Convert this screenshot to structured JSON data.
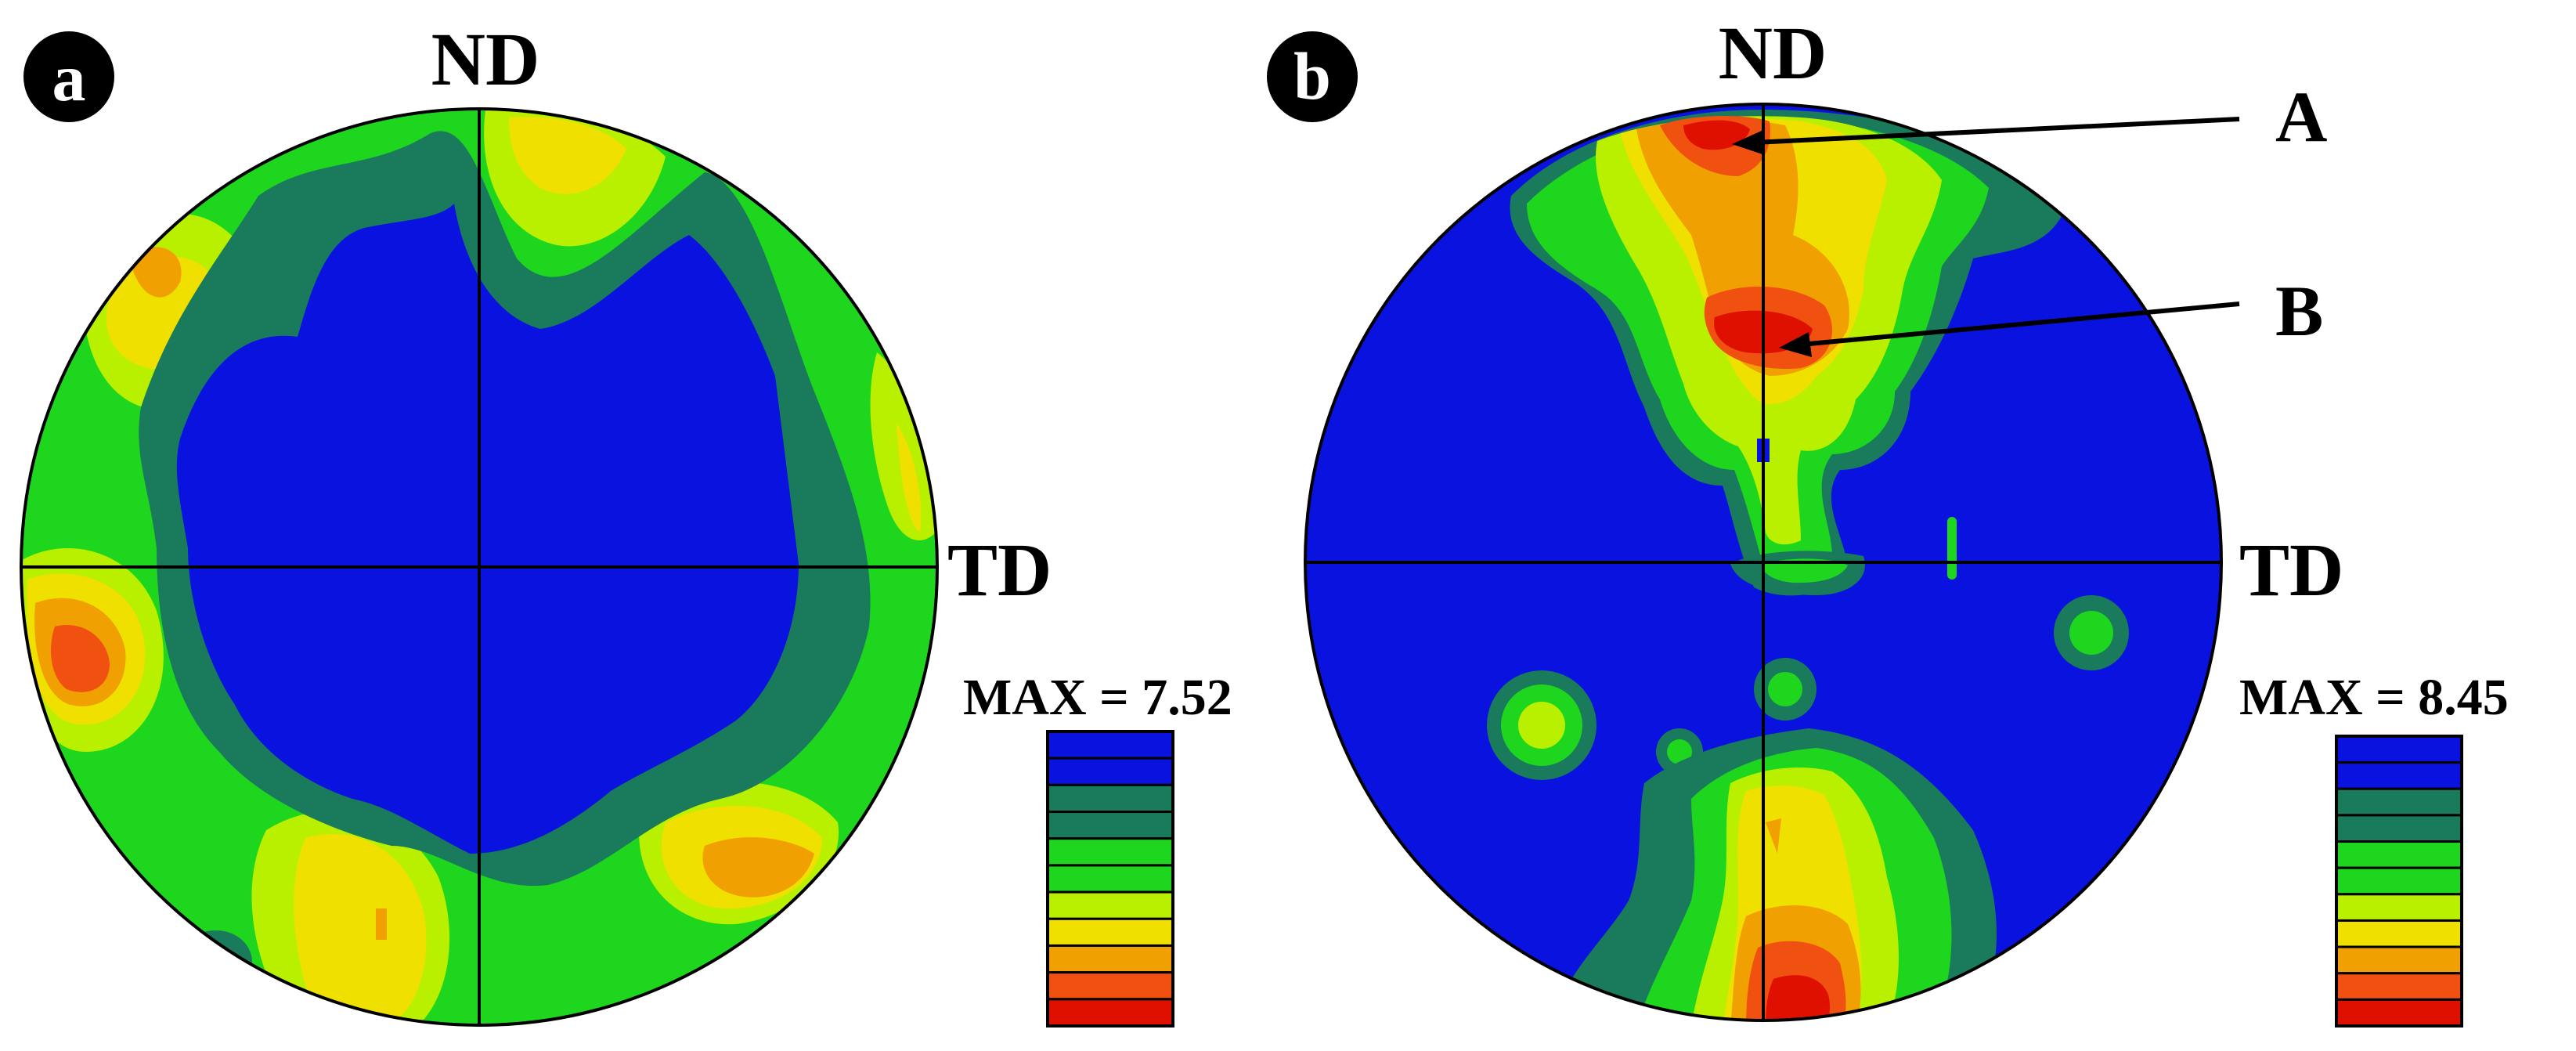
{
  "panels": [
    {
      "letter": "a",
      "axis_top": "ND",
      "axis_right": "TD",
      "max_label": "MAX = 7.52",
      "max_value": 7.52
    },
    {
      "letter": "b",
      "axis_top": "ND",
      "axis_right": "TD",
      "max_label": "MAX = 8.45",
      "max_value": 8.45,
      "annotations": [
        "A",
        "B"
      ]
    }
  ],
  "colors": {
    "level_0": "#0a12e0",
    "level_1": "#1a7a5c",
    "level_2": "#1fd61f",
    "level_3": "#b8f000",
    "level_4": "#f0e000",
    "level_5": "#f0a000",
    "level_6": "#f05010",
    "level_7": "#e01000"
  },
  "legend_levels": [
    "level_0",
    "level_0",
    "level_1",
    "level_1",
    "level_2",
    "level_2",
    "level_3",
    "level_4",
    "level_5",
    "level_6",
    "level_7"
  ]
}
